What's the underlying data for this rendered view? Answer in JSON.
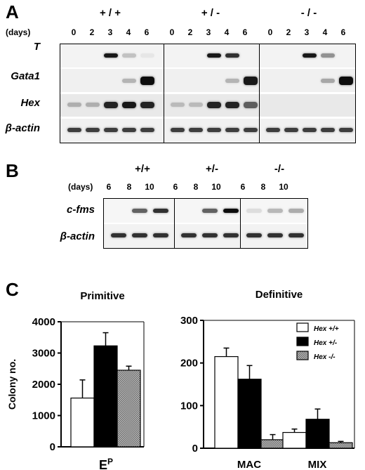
{
  "panelA": {
    "letter": "A",
    "days_label": "(days)",
    "genotypes": [
      "+ / +",
      "+ / -",
      "- / -"
    ],
    "days": [
      "0",
      "2",
      "3",
      "4",
      "6"
    ],
    "genes": [
      "T",
      "Gata1",
      "Hex",
      "β-actin"
    ]
  },
  "panelB": {
    "letter": "B",
    "days_label": "(days)",
    "genotypes": [
      "+/+",
      "+/-",
      "-/-"
    ],
    "days": [
      "6",
      "8",
      "10"
    ],
    "genes": [
      "c-fms",
      "β-actin"
    ]
  },
  "panelC": {
    "letter": "C",
    "legend": [
      "Hex +/+",
      "Hex +/-",
      "Hex -/-"
    ],
    "colors": {
      "wt": "#ffffff",
      "het": "#000000",
      "ko": "#9a9a9a"
    }
  },
  "chart_data": [
    {
      "type": "bar",
      "title": "Primitive",
      "ylabel": "Colony no.",
      "categories": [
        "E^P"
      ],
      "category_main": "E",
      "category_sup": "P",
      "ylim": [
        0,
        4000
      ],
      "yticks": [
        "0",
        "1000",
        "2000",
        "3000",
        "4000"
      ],
      "series": [
        {
          "name": "Hex +/+",
          "values": [
            1560
          ],
          "errors": [
            580
          ]
        },
        {
          "name": "Hex +/-",
          "values": [
            3230
          ],
          "errors": [
            420
          ]
        },
        {
          "name": "Hex -/-",
          "values": [
            2450
          ],
          "errors": [
            130
          ]
        }
      ]
    },
    {
      "type": "bar",
      "title": "Definitive",
      "ylabel": "",
      "categories": [
        "MAC",
        "MIX"
      ],
      "ylim": [
        0,
        300
      ],
      "yticks": [
        "0",
        "100",
        "200",
        "300"
      ],
      "series": [
        {
          "name": "Hex +/+",
          "values": [
            215,
            37
          ],
          "errors": [
            20,
            8
          ]
        },
        {
          "name": "Hex +/-",
          "values": [
            162,
            68
          ],
          "errors": [
            32,
            24
          ]
        },
        {
          "name": "Hex -/-",
          "values": [
            20,
            13
          ],
          "errors": [
            12,
            3
          ]
        }
      ]
    }
  ]
}
